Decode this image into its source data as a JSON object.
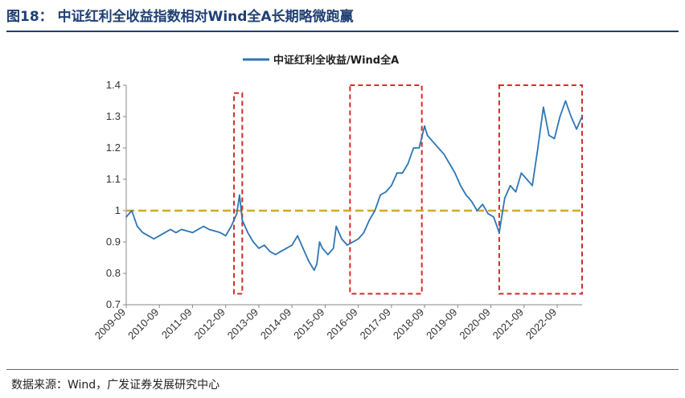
{
  "figure": {
    "title": "图18：  中证红利全收益指数相对Wind全A长期略微跑赢",
    "source": "数据来源：Wind，广发证券发展研究中心"
  },
  "chart_data": {
    "type": "line",
    "title": "",
    "xlabel": "",
    "ylabel": "",
    "legend_position": "top-center",
    "grid": false,
    "ylim": [
      0.7,
      1.4
    ],
    "yticks": [
      "0.7",
      "0.8",
      "0.9",
      "1",
      "1.1",
      "1.2",
      "1.3",
      "1.4"
    ],
    "xlim": [
      "2009-09",
      "2023-06"
    ],
    "xticks": [
      "2009-09",
      "2010-09",
      "2011-09",
      "2012-09",
      "2013-09",
      "2014-09",
      "2015-09",
      "2016-09",
      "2017-09",
      "2018-09",
      "2019-09",
      "2020-09",
      "2021-09",
      "2022-09"
    ],
    "series": [
      {
        "name": "中证红利全收益/Wind全A",
        "color": "#2e75b6",
        "points": [
          [
            "2009-09",
            0.98
          ],
          [
            "2009-11",
            1.0
          ],
          [
            "2010-01",
            0.95
          ],
          [
            "2010-03",
            0.93
          ],
          [
            "2010-05",
            0.92
          ],
          [
            "2010-07",
            0.91
          ],
          [
            "2010-09",
            0.92
          ],
          [
            "2010-11",
            0.93
          ],
          [
            "2011-01",
            0.94
          ],
          [
            "2011-03",
            0.93
          ],
          [
            "2011-05",
            0.94
          ],
          [
            "2011-07",
            0.935
          ],
          [
            "2011-09",
            0.93
          ],
          [
            "2011-11",
            0.94
          ],
          [
            "2012-01",
            0.95
          ],
          [
            "2012-03",
            0.94
          ],
          [
            "2012-05",
            0.935
          ],
          [
            "2012-07",
            0.93
          ],
          [
            "2012-09",
            0.92
          ],
          [
            "2012-11",
            0.95
          ],
          [
            "2013-01",
            0.99
          ],
          [
            "2013-02",
            1.05
          ],
          [
            "2013-03",
            0.97
          ],
          [
            "2013-05",
            0.93
          ],
          [
            "2013-07",
            0.9
          ],
          [
            "2013-09",
            0.88
          ],
          [
            "2013-11",
            0.89
          ],
          [
            "2014-01",
            0.87
          ],
          [
            "2014-03",
            0.86
          ],
          [
            "2014-05",
            0.87
          ],
          [
            "2014-07",
            0.88
          ],
          [
            "2014-09",
            0.89
          ],
          [
            "2014-11",
            0.92
          ],
          [
            "2015-01",
            0.88
          ],
          [
            "2015-03",
            0.84
          ],
          [
            "2015-05",
            0.81
          ],
          [
            "2015-06",
            0.83
          ],
          [
            "2015-07",
            0.9
          ],
          [
            "2015-08",
            0.88
          ],
          [
            "2015-10",
            0.86
          ],
          [
            "2015-12",
            0.88
          ],
          [
            "2016-01",
            0.95
          ],
          [
            "2016-03",
            0.91
          ],
          [
            "2016-05",
            0.89
          ],
          [
            "2016-07",
            0.9
          ],
          [
            "2016-09",
            0.91
          ],
          [
            "2016-11",
            0.93
          ],
          [
            "2017-01",
            0.97
          ],
          [
            "2017-03",
            1.0
          ],
          [
            "2017-05",
            1.05
          ],
          [
            "2017-07",
            1.06
          ],
          [
            "2017-09",
            1.08
          ],
          [
            "2017-11",
            1.12
          ],
          [
            "2018-01",
            1.12
          ],
          [
            "2018-03",
            1.15
          ],
          [
            "2018-05",
            1.2
          ],
          [
            "2018-07",
            1.2
          ],
          [
            "2018-09",
            1.27
          ],
          [
            "2018-10",
            1.24
          ],
          [
            "2018-12",
            1.22
          ],
          [
            "2019-02",
            1.2
          ],
          [
            "2019-04",
            1.18
          ],
          [
            "2019-06",
            1.15
          ],
          [
            "2019-08",
            1.12
          ],
          [
            "2019-10",
            1.08
          ],
          [
            "2019-12",
            1.05
          ],
          [
            "2020-02",
            1.03
          ],
          [
            "2020-04",
            1.0
          ],
          [
            "2020-06",
            1.02
          ],
          [
            "2020-08",
            0.99
          ],
          [
            "2020-10",
            0.98
          ],
          [
            "2020-12",
            0.93
          ],
          [
            "2021-02",
            1.04
          ],
          [
            "2021-04",
            1.08
          ],
          [
            "2021-06",
            1.06
          ],
          [
            "2021-08",
            1.12
          ],
          [
            "2021-10",
            1.1
          ],
          [
            "2021-12",
            1.08
          ],
          [
            "2022-02",
            1.2
          ],
          [
            "2022-04",
            1.33
          ],
          [
            "2022-06",
            1.24
          ],
          [
            "2022-08",
            1.23
          ],
          [
            "2022-10",
            1.3
          ],
          [
            "2022-12",
            1.35
          ],
          [
            "2023-02",
            1.3
          ],
          [
            "2023-04",
            1.26
          ],
          [
            "2023-06",
            1.3
          ]
        ]
      }
    ],
    "reference_line": {
      "y": 1.0,
      "color": "#d4a82a",
      "style": "dashed"
    },
    "highlight_boxes": [
      {
        "x0": "2012-12",
        "x1": "2013-03",
        "y0": 0.735,
        "y1": 1.375,
        "color": "#d42b2b"
      },
      {
        "x0": "2016-06",
        "x1": "2018-08",
        "y0": 0.735,
        "y1": 1.4,
        "color": "#d42b2b"
      },
      {
        "x0": "2020-12",
        "x1": "2023-06",
        "y0": 0.735,
        "y1": 1.4,
        "color": "#d42b2b"
      }
    ]
  }
}
